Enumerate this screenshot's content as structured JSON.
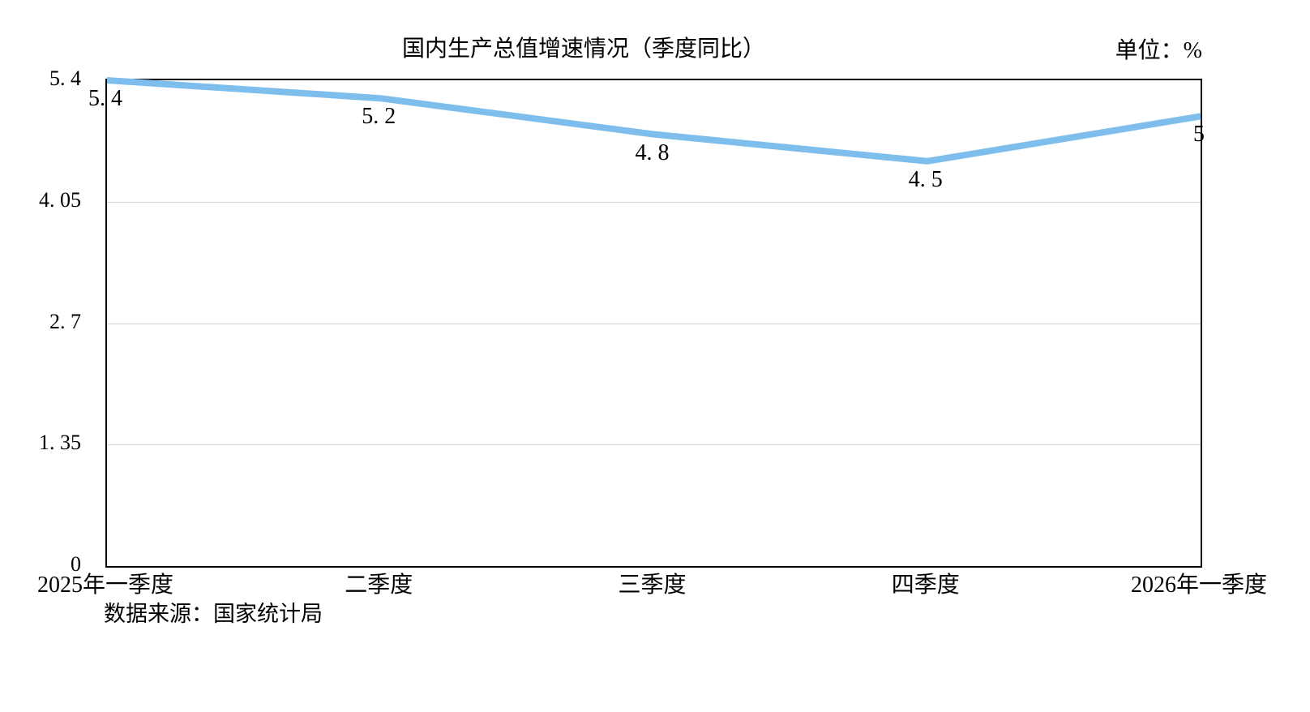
{
  "chart": {
    "title": "国内生产总值增速情况（季度同比）",
    "unit_label": "单位：%",
    "source_note": "数据来源：国家统计局"
  },
  "chart_data": {
    "type": "line",
    "title": "国内生产总值增速情况（季度同比）",
    "unit": "%",
    "categories": [
      "2025年一季度",
      "二季度",
      "三季度",
      "四季度",
      "2026年一季度"
    ],
    "values": [
      5.4,
      5.2,
      4.8,
      4.5,
      5
    ],
    "point_labels": [
      "5. 4",
      "5. 2",
      "4. 8",
      "4. 5",
      "5"
    ],
    "ylim": [
      0,
      5.4
    ],
    "yticks": [
      0,
      1.35,
      2.7,
      4.05,
      5.4
    ],
    "ytick_labels": [
      "0",
      "1. 35",
      "2. 7",
      "4. 05",
      "5. 4"
    ],
    "xlabel": "",
    "ylabel": "",
    "grid": "horizontal-only",
    "legend_position": "none",
    "line_color": "#7EBEEC",
    "line_width": 8,
    "gridline_color": "#D4D4D4",
    "axis_border_color": "#000000",
    "source": "数据来源：国家统计局"
  }
}
